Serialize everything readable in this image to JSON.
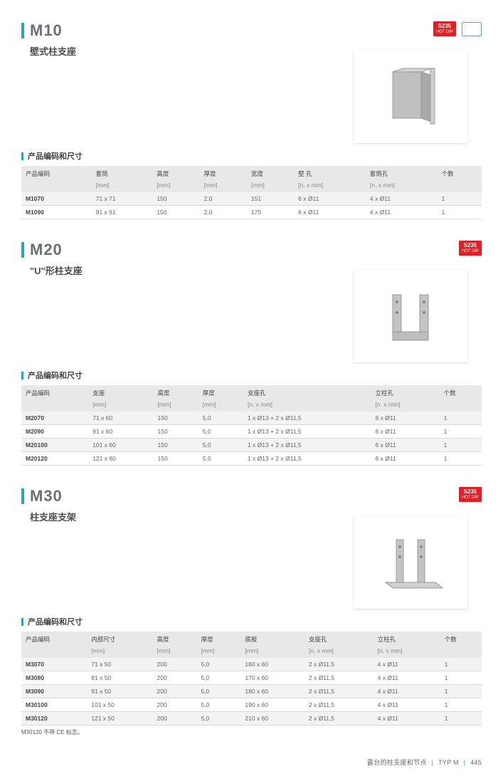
{
  "badge": {
    "text": "S235",
    "sub": "HOT DIP"
  },
  "section_label": "产品编码和尺寸",
  "footer": {
    "text": "露台的柱支座和节点",
    "typ": "TYP M",
    "page": "445"
  },
  "m10": {
    "model": "M10",
    "subtitle": "壁式柱支座",
    "show_eu": true,
    "columns": [
      "产品编码",
      "套筒",
      "高度",
      "厚度",
      "宽度",
      "壁 孔",
      "套筒孔",
      "个数"
    ],
    "units": [
      "",
      "[mm]",
      "[mm]",
      "[mm]",
      "[mm]",
      "[n. x mm]",
      "[n. x mm]",
      ""
    ],
    "rows": [
      [
        "M1070",
        "71 x 71",
        "150",
        "2,0",
        "151",
        "6 x Ø11",
        "4 x Ø11",
        "1"
      ],
      [
        "M1090",
        "91 x 91",
        "150",
        "2,0",
        "175",
        "6 x Ø11",
        "4 x Ø11",
        "1"
      ]
    ]
  },
  "m20": {
    "model": "M20",
    "subtitle": "\"U\"形柱支座",
    "show_eu": false,
    "columns": [
      "产品编码",
      "支座",
      "高度",
      "厚度",
      "支座孔",
      "立柱孔",
      "个数"
    ],
    "units": [
      "",
      "[mm]",
      "[mm]",
      "[mm]",
      "[n. x mm]",
      "[n. x mm]",
      ""
    ],
    "rows": [
      [
        "M2070",
        "71 x 60",
        "150",
        "5,0",
        "1 x Ø13 + 2 x Ø11,5",
        "6 x Ø11",
        "1"
      ],
      [
        "M2090",
        "91 x 60",
        "150",
        "5,0",
        "1 x Ø13 + 2 x Ø11,5",
        "6 x Ø11",
        "1"
      ],
      [
        "M20100",
        "101 x 60",
        "150",
        "5,0",
        "1 x Ø13 + 2 x Ø11,5",
        "6 x Ø11",
        "1"
      ],
      [
        "M20120",
        "121 x 60",
        "150",
        "5,0",
        "1 x Ø13 + 2 x Ø11,5",
        "6 x Ø11",
        "1"
      ]
    ]
  },
  "m30": {
    "model": "M30",
    "subtitle": "柱支座支架",
    "show_eu": false,
    "columns": [
      "产品编码",
      "内部尺寸",
      "高度",
      "厚度",
      "底板",
      "支座孔",
      "立柱孔",
      "个数"
    ],
    "units": [
      "",
      "[mm]",
      "[mm]",
      "[mm]",
      "[mm]",
      "[n. x mm]",
      "[n. x mm]",
      ""
    ],
    "rows": [
      [
        "M3070",
        "71 x 50",
        "200",
        "5,0",
        "160 x 60",
        "2 x Ø11,5",
        "4 x Ø11",
        "1"
      ],
      [
        "M3080",
        "81 x 50",
        "200",
        "5,0",
        "170 x 60",
        "2 x Ø11,5",
        "4 x Ø11",
        "1"
      ],
      [
        "M3090",
        "91 x 50",
        "200",
        "5,0",
        "180 x 60",
        "2 x Ø11,5",
        "4 x Ø11",
        "1"
      ],
      [
        "M30100",
        "101 x 50",
        "200",
        "5,0",
        "190 x 60",
        "2 x Ø11,5",
        "4 x Ø11",
        "1"
      ],
      [
        "M30120",
        "121 x 50",
        "200",
        "5,0",
        "210 x 60",
        "2 x Ø11,5",
        "4 x Ø11",
        "1"
      ]
    ],
    "note": "M30120 不带 CE 标志。"
  }
}
